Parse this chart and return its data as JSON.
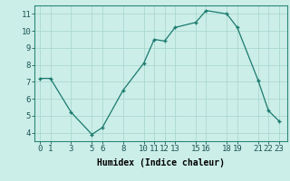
{
  "x": [
    0,
    1,
    3,
    5,
    6,
    8,
    10,
    11,
    12,
    13,
    15,
    16,
    18,
    19,
    21,
    22,
    23
  ],
  "y": [
    7.2,
    7.2,
    5.2,
    3.9,
    4.3,
    6.5,
    8.1,
    9.5,
    9.4,
    10.2,
    10.5,
    11.2,
    11.0,
    10.2,
    7.1,
    5.3,
    4.7
  ],
  "line_color": "#1a7a6e",
  "marker_color": "#1a7a6e",
  "bg_color": "#cceee8",
  "grid_color": "#aad8d0",
  "xlabel": "Humidex (Indice chaleur)",
  "xlim": [
    -0.5,
    23.8
  ],
  "ylim": [
    3.5,
    11.5
  ],
  "xticks": [
    0,
    1,
    3,
    5,
    6,
    8,
    10,
    11,
    12,
    13,
    15,
    16,
    18,
    19,
    21,
    22,
    23
  ],
  "yticks": [
    4,
    5,
    6,
    7,
    8,
    9,
    10,
    11
  ],
  "xlabel_fontsize": 7,
  "tick_fontsize": 6.5
}
